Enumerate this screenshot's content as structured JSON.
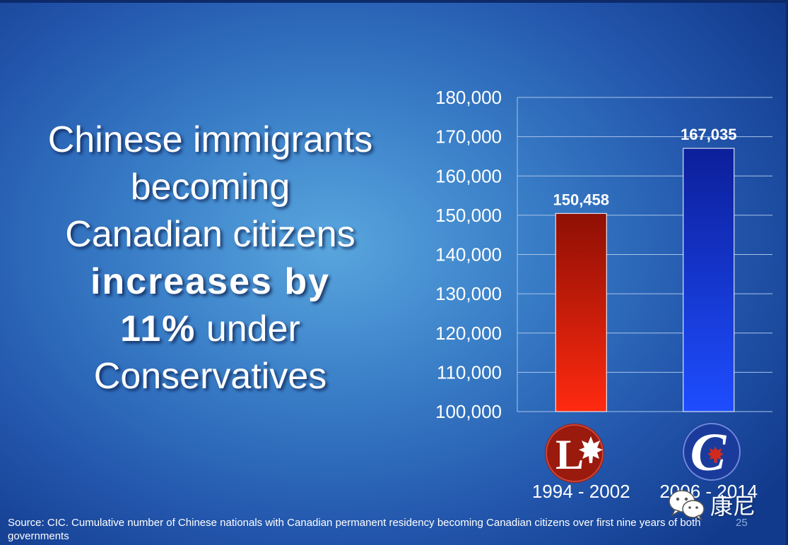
{
  "headline": {
    "line1": "Chinese immigrants",
    "line2": "becoming",
    "line3": "Canadian citizens",
    "line4_bold": "increases by",
    "line5_bold": "11%",
    "line5_rest": " under",
    "line6": "Conservatives"
  },
  "chart_data": {
    "type": "bar",
    "categories": [
      "1994 - 2002",
      "2006 - 2014"
    ],
    "values": [
      150458,
      167035
    ],
    "data_labels": [
      "150,458",
      "167,035"
    ],
    "ylim": [
      100000,
      180000
    ],
    "yticks": [
      "100,000",
      "110,000",
      "120,000",
      "130,000",
      "140,000",
      "150,000",
      "160,000",
      "170,000",
      "180,000"
    ],
    "grid": true,
    "bar_colors": [
      "#c81a0a",
      "#1a3fd8"
    ],
    "category_icons": [
      "liberal-party-logo-icon",
      "conservative-party-logo-icon"
    ],
    "logo_letters": [
      "L",
      "C"
    ]
  },
  "footer": {
    "source": "Source: CIC. Cumulative number of Chinese nationals with Canadian permanent residency becoming Canadian citizens over first nine years of both governments",
    "slide_number": "25"
  },
  "watermark": {
    "icon": "wechat-icon",
    "text": "康尼"
  }
}
